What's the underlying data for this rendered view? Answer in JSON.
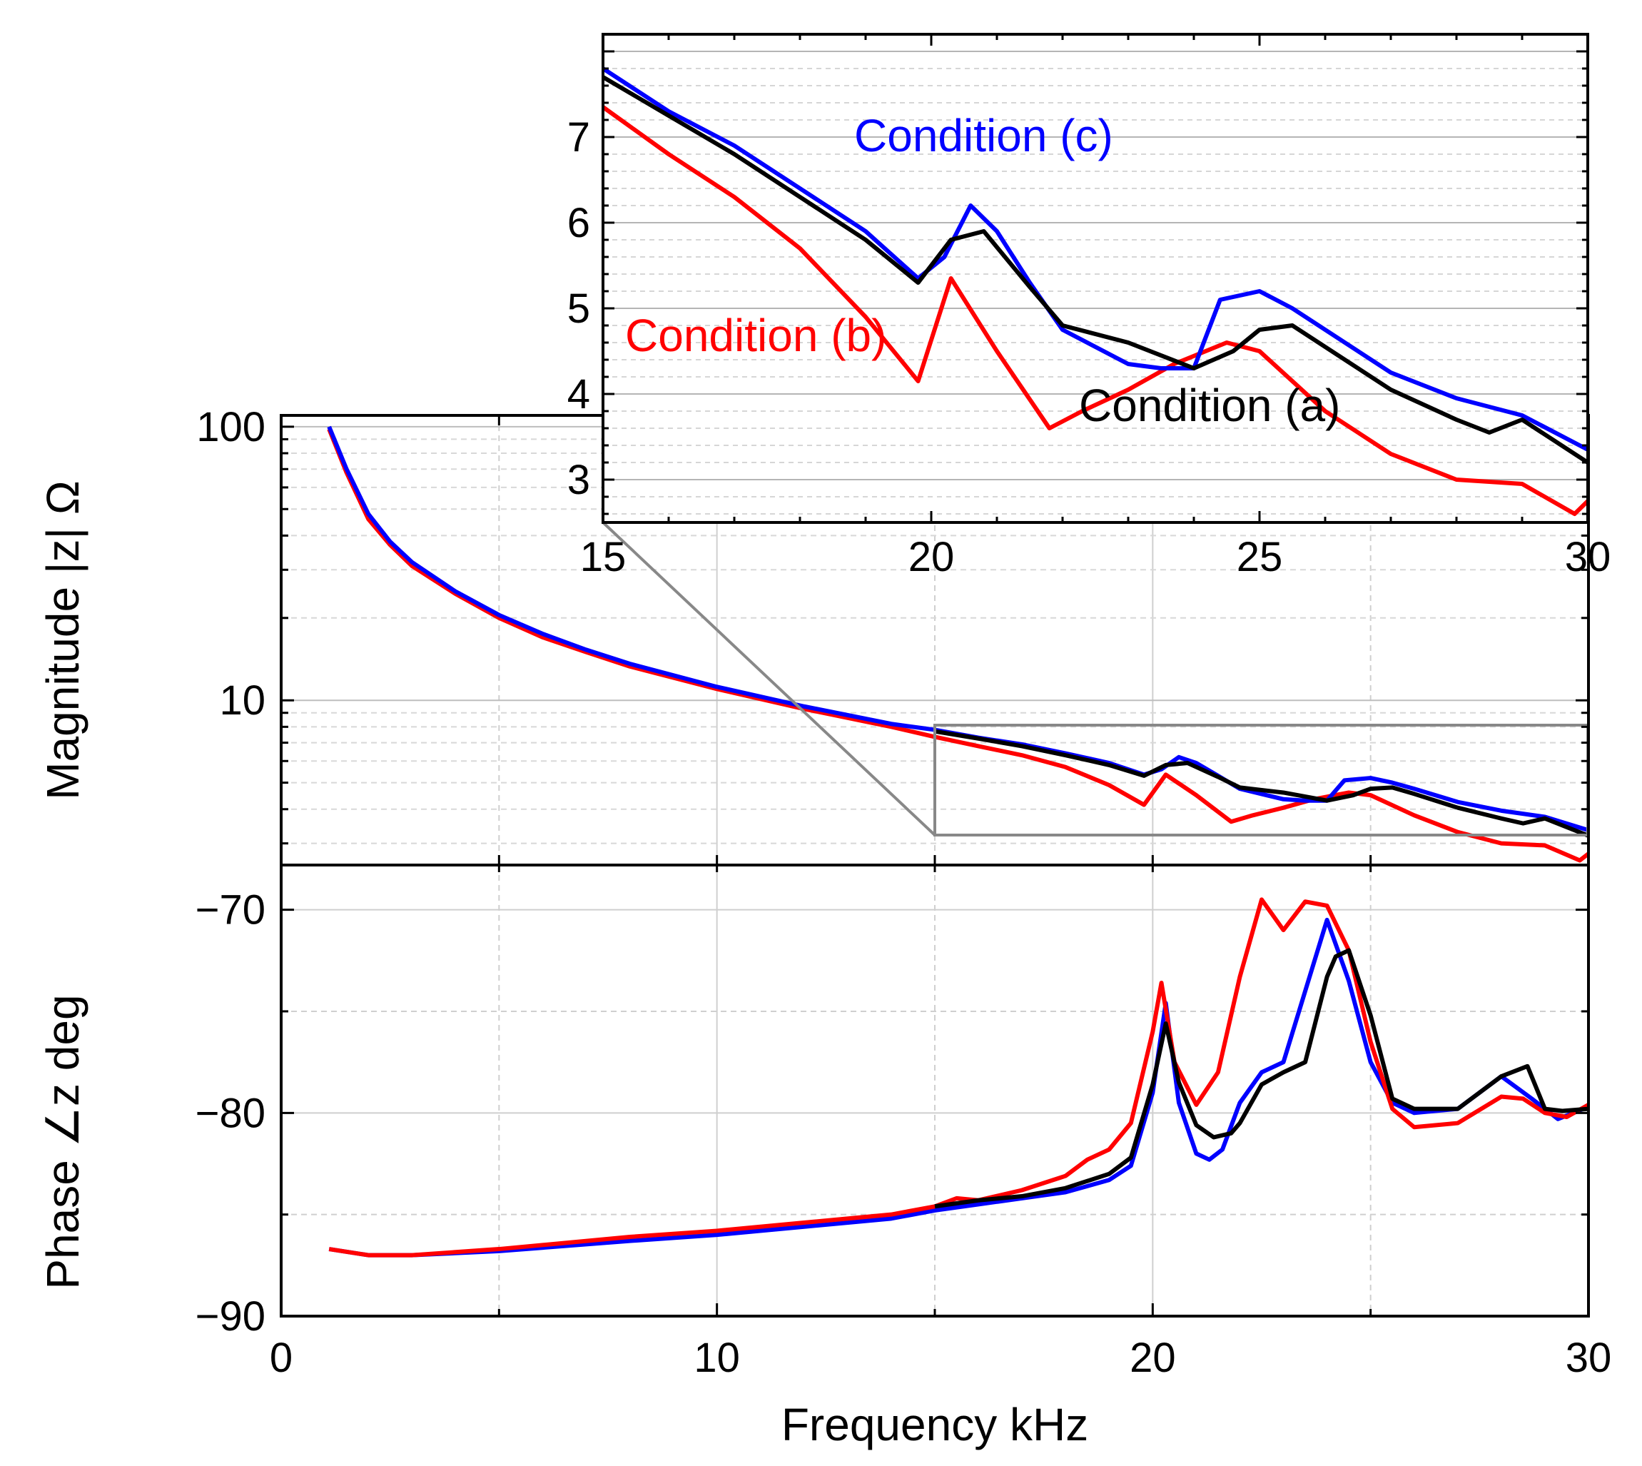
{
  "chart_data": [
    {
      "id": "magnitude",
      "type": "line",
      "ylabel": "Magnitude |z|  Ω",
      "yscale": "log",
      "xlim": [
        0,
        30
      ],
      "ylim": [
        2.5,
        110
      ],
      "yticks": [
        10,
        100
      ],
      "ytick_labels": [
        "10",
        "100"
      ],
      "xgrid": [
        5,
        10,
        15,
        20,
        25
      ],
      "series": [
        {
          "name": "Condition (c)",
          "color": "#0000ff",
          "x": [
            1.1,
            1.5,
            2,
            2.5,
            3,
            4,
            5,
            6,
            7,
            8,
            10,
            12,
            14,
            15,
            16,
            17,
            18,
            19,
            19.8,
            20.2,
            20.6,
            21,
            21.5,
            22,
            23,
            23.5,
            24,
            24.4,
            25,
            25.5,
            26,
            27,
            28,
            29,
            30
          ],
          "y": [
            100,
            70,
            48,
            38,
            32,
            25,
            20.5,
            17.5,
            15.3,
            13.6,
            11.2,
            9.5,
            8.2,
            7.8,
            7.3,
            6.9,
            6.4,
            5.9,
            5.35,
            5.6,
            6.2,
            5.9,
            5.3,
            4.75,
            4.35,
            4.3,
            4.3,
            5.1,
            5.2,
            5.0,
            4.75,
            4.25,
            3.95,
            3.75,
            3.35
          ]
        },
        {
          "name": "Condition (b)",
          "color": "#ff0000",
          "x": [
            1.1,
            1.5,
            2,
            2.5,
            3,
            4,
            5,
            6,
            7,
            8,
            10,
            12,
            14,
            15,
            16,
            17,
            18,
            19,
            19.8,
            20.3,
            21,
            21.8,
            22.3,
            23,
            23.7,
            24.5,
            25,
            26,
            27,
            28,
            29,
            29.8,
            30
          ],
          "y": [
            98,
            68,
            46,
            37,
            31,
            24.5,
            20,
            17,
            15,
            13.3,
            11,
            9.3,
            8,
            7.35,
            6.8,
            6.3,
            5.7,
            4.9,
            4.15,
            5.35,
            4.5,
            3.6,
            3.8,
            4.05,
            4.35,
            4.6,
            4.5,
            3.8,
            3.3,
            3.0,
            2.95,
            2.6,
            2.75
          ]
        },
        {
          "name": "Condition (a)",
          "color": "#000000",
          "x": [
            15,
            16,
            17,
            18,
            19,
            19.8,
            20.3,
            20.8,
            21.5,
            22,
            23,
            24,
            24.6,
            25,
            25.5,
            26,
            27,
            28,
            28.5,
            29,
            30
          ],
          "y": [
            7.7,
            7.25,
            6.8,
            6.3,
            5.8,
            5.3,
            5.8,
            5.9,
            5.25,
            4.8,
            4.6,
            4.3,
            4.5,
            4.75,
            4.8,
            4.55,
            4.05,
            3.7,
            3.55,
            3.7,
            3.2
          ]
        }
      ]
    },
    {
      "id": "inset",
      "type": "line",
      "xlim": [
        15,
        30
      ],
      "ylim": [
        2.5,
        8.2
      ],
      "xticks": [
        15,
        20,
        25,
        30
      ],
      "xtick_labels": [
        "15",
        "20",
        "25",
        "30"
      ],
      "yticks": [
        3,
        4,
        5,
        6,
        7
      ],
      "ytick_labels": [
        "3",
        "4",
        "5",
        "6",
        "7"
      ],
      "annotations": [
        {
          "text": "Condition (c)",
          "color": "#0000ff"
        },
        {
          "text": "Condition (b)",
          "color": "#ff0000"
        },
        {
          "text": "Condition (a)",
          "color": "#000000"
        }
      ]
    },
    {
      "id": "phase",
      "type": "line",
      "ylabel": "Phase ∠z deg",
      "xlabel": "Frequency kHz",
      "xlim": [
        0,
        30
      ],
      "ylim": [
        -90,
        -67.8
      ],
      "xticks": [
        0,
        10,
        20,
        30
      ],
      "xtick_labels": [
        "0",
        "10",
        "20",
        "30"
      ],
      "yticks": [
        -90,
        -80,
        -70
      ],
      "ytick_labels": [
        "−90",
        "−80",
        "−70"
      ],
      "series": [
        {
          "name": "Condition (c)",
          "color": "#0000ff",
          "x": [
            1.1,
            2,
            3,
            5,
            8,
            10,
            12,
            14,
            15,
            16,
            17,
            18,
            19,
            19.5,
            20,
            20.3,
            20.6,
            21,
            21.3,
            21.6,
            22,
            22.5,
            23,
            23.5,
            24,
            24.5,
            25,
            25.5,
            26,
            27,
            28,
            28.7,
            29.3,
            30
          ],
          "y": [
            -86.7,
            -87,
            -87,
            -86.8,
            -86.3,
            -86,
            -85.6,
            -85.2,
            -84.8,
            -84.5,
            -84.2,
            -83.9,
            -83.3,
            -82.6,
            -79,
            -74.6,
            -79.5,
            -82,
            -82.3,
            -81.8,
            -79.5,
            -78,
            -77.5,
            -74,
            -70.5,
            -73.5,
            -77.5,
            -79.5,
            -80,
            -79.8,
            -78.2,
            -79.3,
            -80.3,
            -79.7
          ]
        },
        {
          "name": "Condition (b)",
          "color": "#ff0000",
          "x": [
            1.1,
            2,
            3,
            5,
            8,
            10,
            12,
            14,
            15,
            15.5,
            16,
            17,
            18,
            18.5,
            19,
            19.5,
            20,
            20.2,
            20.5,
            21,
            21.5,
            22,
            22.5,
            23,
            23.5,
            24,
            24.5,
            25,
            25.5,
            26,
            27,
            28,
            28.5,
            29,
            29.5,
            30
          ],
          "y": [
            -86.7,
            -87,
            -87,
            -86.7,
            -86.1,
            -85.8,
            -85.4,
            -85,
            -84.6,
            -84.2,
            -84.3,
            -83.8,
            -83.1,
            -82.3,
            -81.8,
            -80.5,
            -76,
            -73.6,
            -77.5,
            -79.6,
            -78,
            -73.3,
            -69.5,
            -71,
            -69.6,
            -69.8,
            -72,
            -76.5,
            -79.8,
            -80.7,
            -80.5,
            -79.2,
            -79.3,
            -80,
            -80.2,
            -79.6
          ]
        },
        {
          "name": "Condition (a)",
          "color": "#000000",
          "x": [
            15,
            16,
            17,
            18,
            19,
            19.5,
            20,
            20.3,
            20.6,
            21,
            21.4,
            21.8,
            22,
            22.5,
            23,
            23.5,
            24,
            24.2,
            24.5,
            25,
            25.5,
            26,
            27,
            28,
            28.6,
            29,
            29.4,
            30
          ],
          "y": [
            -84.6,
            -84.3,
            -84.1,
            -83.7,
            -83,
            -82.2,
            -78.6,
            -75.6,
            -78.5,
            -80.6,
            -81.2,
            -81,
            -80.5,
            -78.6,
            -78,
            -77.5,
            -73.3,
            -72.3,
            -72,
            -75.2,
            -79.3,
            -79.8,
            -79.8,
            -78.2,
            -77.7,
            -79.8,
            -79.9,
            -79.8
          ]
        }
      ]
    }
  ]
}
